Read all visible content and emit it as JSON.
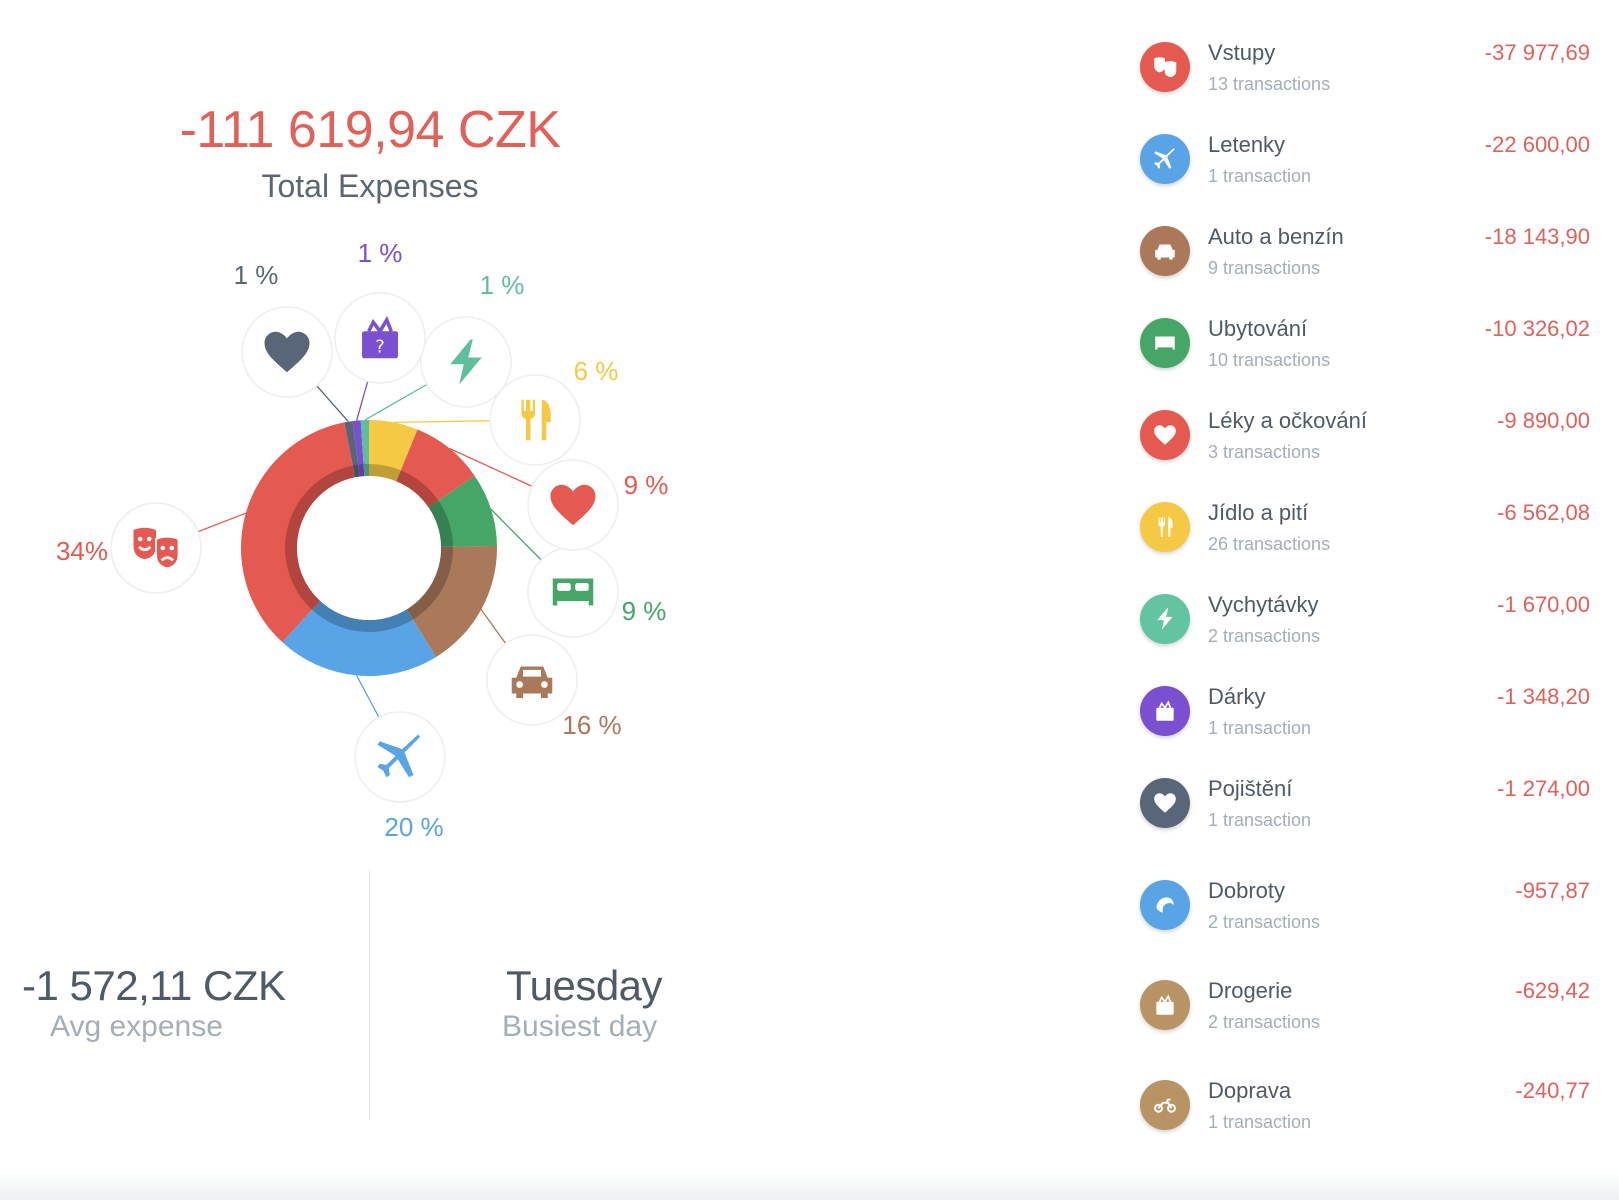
{
  "summary": {
    "total_amount": "-111 619,94 CZK",
    "total_label": "Total Expenses",
    "avg_value": "-1 572,11 CZK",
    "avg_label": "Avg expense",
    "busiest_value": "Tuesday",
    "busiest_label": "Busiest day"
  },
  "chart_data": {
    "type": "pie",
    "title": "",
    "donut": true,
    "slices": [
      {
        "label": "34%",
        "value": 34,
        "color": "#e55a50",
        "icon": "theater-masks-icon",
        "category": "Vstupy"
      },
      {
        "label": "20 %",
        "value": 20,
        "color": "#58a4e6",
        "icon": "airplane-icon",
        "category": "Letenky"
      },
      {
        "label": "16 %",
        "value": 16,
        "color": "#a9795a",
        "icon": "car-icon",
        "category": "Auto a benzín"
      },
      {
        "label": "9 %",
        "value": 9,
        "color": "#45a668",
        "icon": "bed-icon",
        "category": "Ubytování"
      },
      {
        "label": "9 %",
        "value": 9,
        "color": "#e55a50",
        "icon": "heart-icon",
        "category": "Léky a očkování"
      },
      {
        "label": "6 %",
        "value": 6,
        "color": "#f6c945",
        "icon": "fork-knife-icon",
        "category": "Jídlo a pití"
      },
      {
        "label": "1 %",
        "value": 1,
        "color": "#5fbf9c",
        "icon": "lightning-icon",
        "category": "Vychytávky"
      },
      {
        "label": "1 %",
        "value": 1,
        "color": "#7a4fd0",
        "icon": "gift-box-icon",
        "category": "Dárky"
      },
      {
        "label": "1 %",
        "value": 1,
        "color": "#596578",
        "icon": "heart-icon",
        "category": "Pojištění"
      }
    ]
  },
  "categories": [
    {
      "name": "Vstupy",
      "count": "13 transactions",
      "amount": "-37 977,69",
      "color": "#e55a50",
      "icon": "theater-masks-icon"
    },
    {
      "name": "Letenky",
      "count": "1 transaction",
      "amount": "-22 600,00",
      "color": "#58a4e6",
      "icon": "airplane-icon"
    },
    {
      "name": "Auto a benzín",
      "count": "9 transactions",
      "amount": "-18 143,90",
      "color": "#a9795a",
      "icon": "car-icon"
    },
    {
      "name": "Ubytování",
      "count": "10 transactions",
      "amount": "-10 326,02",
      "color": "#45a668",
      "icon": "bed-icon"
    },
    {
      "name": "Léky a očkování",
      "count": "3 transactions",
      "amount": "-9 890,00",
      "color": "#e55a50",
      "icon": "heart-icon"
    },
    {
      "name": "Jídlo a pití",
      "count": "26 transactions",
      "amount": "-6 562,08",
      "color": "#f6c945",
      "icon": "fork-knife-icon"
    },
    {
      "name": "Vychytávky",
      "count": "2 transactions",
      "amount": "-1 670,00",
      "color": "#62c4a0",
      "icon": "lightning-icon"
    },
    {
      "name": "Dárky",
      "count": "1 transaction",
      "amount": "-1 348,20",
      "color": "#7a4fd0",
      "icon": "gift-box-icon"
    },
    {
      "name": "Pojištění",
      "count": "1 transaction",
      "amount": "-1 274,00",
      "color": "#596578",
      "icon": "heart-icon"
    },
    {
      "name": "Dobroty",
      "count": "2 transactions",
      "amount": "-957,87",
      "color": "#58a4e6",
      "icon": "croissant-icon"
    },
    {
      "name": "Drogerie",
      "count": "2 transactions",
      "amount": "-629,42",
      "color": "#b89465",
      "icon": "gift-box-icon"
    },
    {
      "name": "Doprava",
      "count": "1 transaction",
      "amount": "-240,77",
      "color": "#b89465",
      "icon": "motorbike-icon"
    }
  ]
}
